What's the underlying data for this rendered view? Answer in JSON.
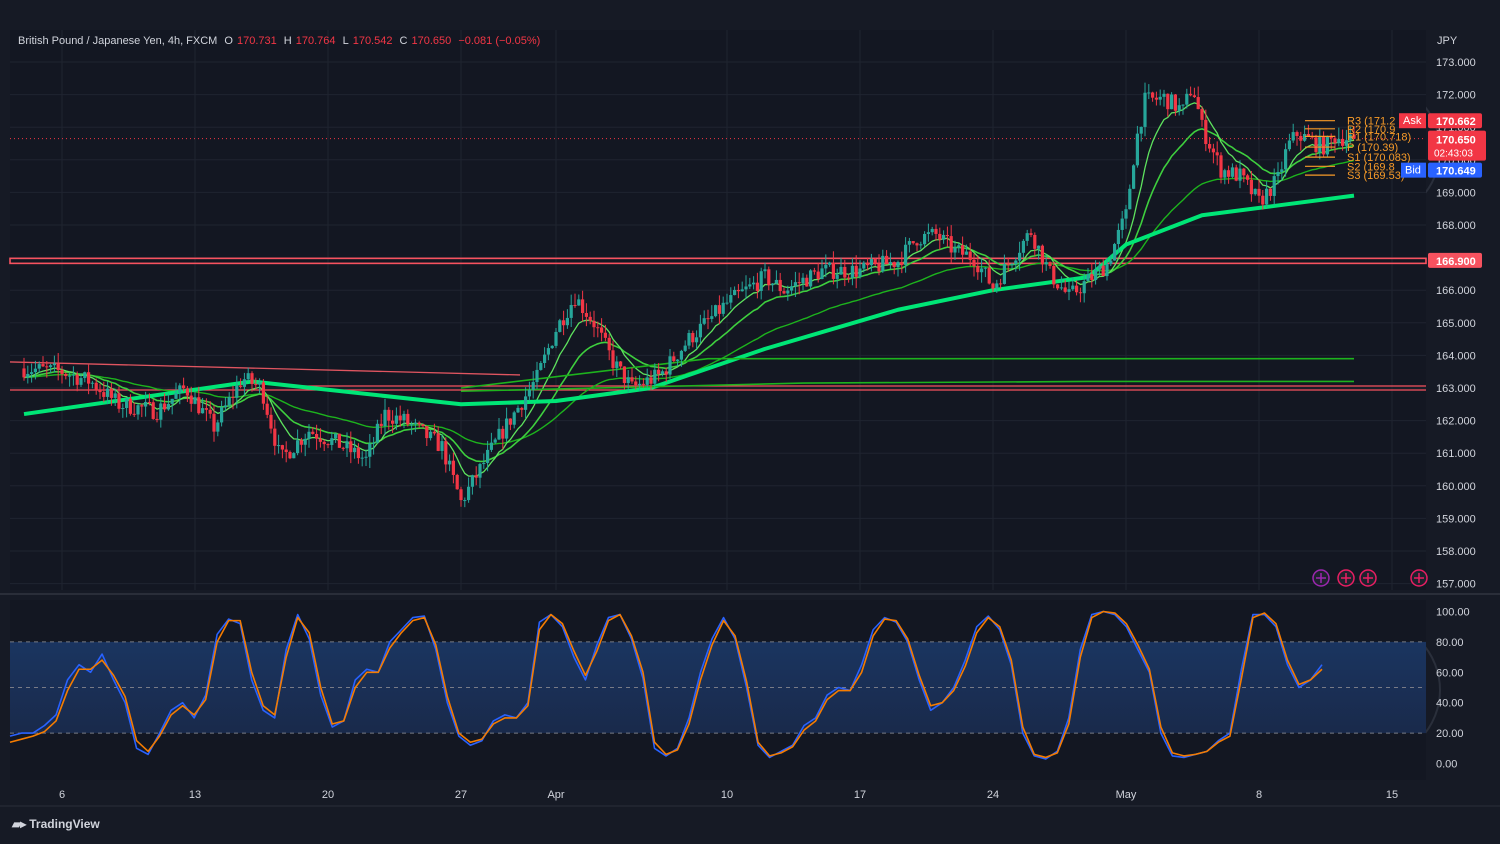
{
  "header": {
    "symbol": "British Pound / Japanese Yen, 4h, FXCM",
    "open_label": "O",
    "open": "170.731",
    "high_label": "H",
    "high": "170.764",
    "low_label": "L",
    "low": "170.542",
    "close_label": "C",
    "close": "170.650",
    "change": "−0.081 (−0.05%)"
  },
  "currency": "JPY",
  "brand": "TradingView",
  "price_tags": {
    "ask_label": "Ask",
    "ask": "170.662",
    "last": "170.650",
    "countdown": "02:43:03",
    "bid_label": "Bid",
    "bid": "170.649",
    "level": "166.900"
  },
  "pivots": [
    {
      "label": "R3 (171.2"
    },
    {
      "label": "R2 (170.9"
    },
    {
      "label": "R1 (170.718)"
    },
    {
      "label": "P (170.39)"
    },
    {
      "label": "S1 (170.083)"
    },
    {
      "label": "S2 (169.8"
    },
    {
      "label": "S3 (169.53)"
    }
  ],
  "colors": {
    "bg": "#161a25",
    "up": "#26a69a",
    "down": "#f23645",
    "ema_fast": "#00e676",
    "ema_slow": "#1db31d",
    "stoch_k": "#2962ff",
    "stoch_d": "#f57c00",
    "resistance": "#f7525f",
    "pivot": "#f89b28"
  },
  "chart_data": [
    {
      "type": "candlestick",
      "title": "British Pound / Japanese Yen, 4h, FXCM",
      "ylabel": "JPY",
      "ylim": [
        157,
        173.3
      ],
      "yticks": [
        157,
        158,
        159,
        160,
        161,
        162,
        163,
        164,
        165,
        166,
        167,
        168,
        169,
        170,
        171,
        172,
        173
      ],
      "ytick_labels": [
        "157.000",
        "158.000",
        "159.000",
        "160.000",
        "161.000",
        "162.000",
        "163.000",
        "164.000",
        "165.000",
        "166.000",
        "167.000",
        "168.000",
        "169.000",
        "170.000",
        "171.000",
        "172.000",
        "173.000"
      ],
      "x_tick_labels": [
        "6",
        "13",
        "20",
        "27",
        "Apr",
        "10",
        "17",
        "24",
        "May",
        "8",
        "15"
      ],
      "x_tick_days": [
        6,
        13,
        20,
        27,
        32,
        41,
        48,
        55,
        62,
        69,
        76
      ],
      "horizontal_levels": [
        166.9,
        163.0
      ],
      "last_price": 170.65,
      "price_path": [
        [
          4,
          163.6
        ],
        [
          6,
          163.5
        ],
        [
          7.5,
          163.2
        ],
        [
          9,
          162.5
        ],
        [
          11,
          162.3
        ],
        [
          12.5,
          163.0
        ],
        [
          14,
          161.8
        ],
        [
          15.5,
          163.3
        ],
        [
          16.5,
          163.0
        ],
        [
          17.5,
          160.8
        ],
        [
          19,
          161.7
        ],
        [
          20.5,
          161.3
        ],
        [
          22,
          160.8
        ],
        [
          23,
          162.2
        ],
        [
          24,
          162.0
        ],
        [
          26,
          161.2
        ],
        [
          27,
          159.5
        ],
        [
          28,
          160.5
        ],
        [
          29,
          161.5
        ],
        [
          31,
          163.3
        ],
        [
          32,
          164.8
        ],
        [
          33,
          165.8
        ],
        [
          34,
          165.0
        ],
        [
          35,
          163.8
        ],
        [
          36,
          163.0
        ],
        [
          37.5,
          163.4
        ],
        [
          39,
          164.5
        ],
        [
          41,
          165.6
        ],
        [
          43,
          166.4
        ],
        [
          44,
          166.0
        ],
        [
          46,
          166.6
        ],
        [
          48,
          166.6
        ],
        [
          50,
          166.9
        ],
        [
          51,
          167.6
        ],
        [
          52,
          167.7
        ],
        [
          53,
          167.2
        ],
        [
          54,
          167.0
        ],
        [
          55,
          166.1
        ],
        [
          56,
          167.0
        ],
        [
          57,
          167.8
        ],
        [
          58,
          166.5
        ],
        [
          59,
          165.8
        ],
        [
          60,
          166.3
        ],
        [
          61,
          166.8
        ],
        [
          62,
          168.3
        ],
        [
          62.5,
          170.5
        ],
        [
          63,
          171.8
        ],
        [
          64,
          171.9
        ],
        [
          65,
          171.5
        ],
        [
          65.5,
          172.3
        ],
        [
          66,
          171.0
        ],
        [
          67,
          169.7
        ],
        [
          68,
          169.5
        ],
        [
          68.5,
          169.1
        ],
        [
          69,
          168.7
        ],
        [
          70,
          169.4
        ],
        [
          70.5,
          170.4
        ],
        [
          71,
          170.8
        ],
        [
          72,
          170.5
        ],
        [
          72.5,
          170.4
        ],
        [
          73,
          170.7
        ],
        [
          74,
          170.65
        ]
      ],
      "series": [
        {
          "name": "",
          "type": "line",
          "points": [
            [
              4,
              162.2
            ],
            [
              16,
              163.2
            ],
            [
              27,
              162.5
            ],
            [
              32,
              162.6
            ],
            [
              37,
              163.0
            ],
            [
              43,
              164.2
            ],
            [
              50,
              165.4
            ],
            [
              55,
              166.0
            ],
            [
              60,
              166.4
            ],
            [
              62,
              167.4
            ],
            [
              66,
              168.3
            ],
            [
              70,
              168.6
            ],
            [
              74,
              168.9
            ]
          ]
        },
        {
          "name": "",
          "type": "line",
          "points": [
            [
              27,
              163.0
            ],
            [
              40,
              163.9
            ],
            [
              55,
              163.9
            ],
            [
              74,
              163.9
            ]
          ]
        },
        {
          "name": "",
          "type": "line",
          "points": [
            [
              27,
              162.9
            ],
            [
              45,
              163.15
            ],
            [
              60,
              163.2
            ],
            [
              74,
              163.2
            ]
          ]
        }
      ]
    },
    {
      "type": "line",
      "title": "",
      "ylim": [
        -5,
        105
      ],
      "yticks": [
        0,
        20,
        40,
        60,
        80,
        100
      ],
      "ytick_labels": [
        "0.00",
        "20.00",
        "40.00",
        "60.00",
        "80.00",
        "100.00"
      ],
      "band": [
        20,
        80
      ],
      "series": [
        {
          "name": "",
          "values": [
            18,
            20,
            20,
            25,
            32,
            55,
            65,
            60,
            72,
            55,
            40,
            10,
            6,
            20,
            35,
            40,
            30,
            45,
            85,
            95,
            92,
            55,
            35,
            30,
            75,
            98,
            82,
            45,
            24,
            28,
            55,
            62,
            60,
            80,
            88,
            96,
            97,
            75,
            40,
            18,
            12,
            15,
            28,
            32,
            30,
            40,
            93,
            98,
            90,
            70,
            55,
            78,
            96,
            98,
            82,
            56,
            10,
            5,
            10,
            30,
            60,
            82,
            96,
            82,
            50,
            12,
            4,
            8,
            12,
            25,
            30,
            45,
            50,
            48,
            65,
            88,
            96,
            93,
            80,
            55,
            35,
            40,
            50,
            68,
            90,
            97,
            88,
            65,
            20,
            5,
            3,
            8,
            30,
            75,
            98,
            100,
            98,
            90,
            75,
            60,
            20,
            5,
            4,
            6,
            8,
            15,
            20,
            62,
            98,
            98,
            90,
            65,
            50,
            55,
            65
          ]
        },
        {
          "name": "",
          "values": [
            14,
            16,
            18,
            21,
            28,
            48,
            62,
            62,
            68,
            58,
            44,
            15,
            8,
            18,
            32,
            38,
            32,
            42,
            80,
            94,
            94,
            60,
            38,
            32,
            70,
            96,
            86,
            50,
            26,
            28,
            50,
            60,
            60,
            76,
            86,
            94,
            96,
            78,
            44,
            20,
            14,
            16,
            26,
            30,
            30,
            38,
            88,
            98,
            92,
            74,
            58,
            74,
            94,
            98,
            84,
            60,
            14,
            6,
            9,
            26,
            55,
            78,
            94,
            84,
            54,
            14,
            5,
            7,
            11,
            22,
            28,
            42,
            48,
            48,
            60,
            84,
            95,
            94,
            82,
            58,
            38,
            40,
            48,
            64,
            86,
            96,
            90,
            68,
            24,
            6,
            4,
            7,
            26,
            70,
            96,
            100,
            99,
            92,
            78,
            62,
            24,
            7,
            5,
            6,
            8,
            14,
            18,
            56,
            96,
            99,
            92,
            68,
            52,
            55,
            62
          ]
        }
      ]
    }
  ]
}
